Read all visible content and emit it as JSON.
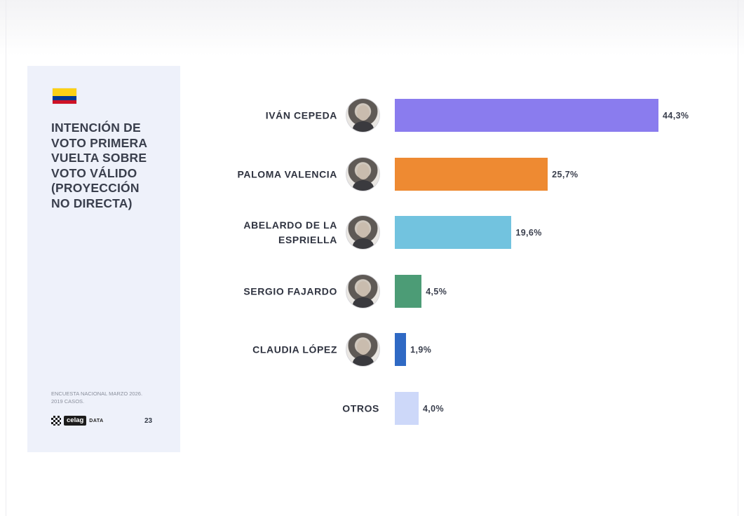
{
  "panel": {
    "title": "INTENCIÓN DE\nVOTO PRIMERA\nVUELTA SOBRE\nVOTO VÁLIDO\n(PROYECCIÓN\nNO DIRECTA)",
    "source": "ENCUESTA NACIONAL MARZO 2026.\n2019 CASOS.",
    "logo_text": "celag",
    "logo_suffix": "DATA",
    "page_number": "23",
    "flag_colors": [
      "#FCD116",
      "#003893",
      "#CE1126"
    ]
  },
  "chart_data": {
    "type": "bar",
    "orientation": "horizontal",
    "categories": [
      "IVÁN CEPEDA",
      "PALOMA VALENCIA",
      "ABELARDO DE LA\nESPRIELLA",
      "SERGIO FAJARDO",
      "CLAUDIA LÓPEZ",
      "OTROS"
    ],
    "values": [
      44.3,
      25.7,
      19.6,
      4.5,
      1.9,
      4.0
    ],
    "value_labels": [
      "44,3%",
      "25,7%",
      "19,6%",
      "4,5%",
      "1,9%",
      "4,0%"
    ],
    "colors": [
      "#8a7cee",
      "#ee8a32",
      "#72c3df",
      "#4c9c76",
      "#2f69c4",
      "#cdd8f9"
    ],
    "has_photo": [
      true,
      true,
      true,
      true,
      true,
      false
    ],
    "unit": "%"
  }
}
